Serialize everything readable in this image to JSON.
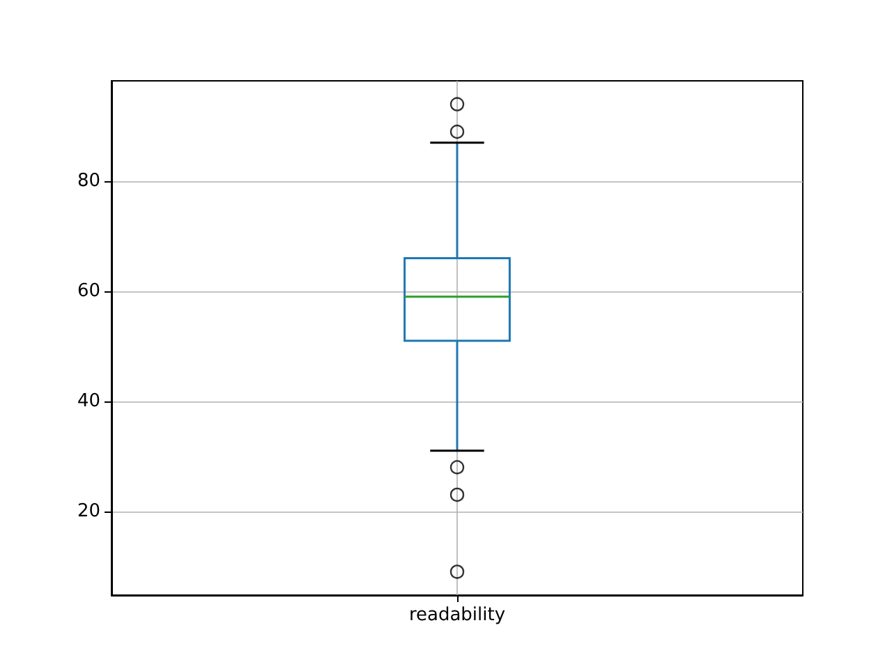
{
  "chart_data": {
    "type": "box",
    "categories": [
      "readability"
    ],
    "series": [
      {
        "color": "#1f77b4",
        "boxes": [
          {
            "low": 31,
            "q1": 51,
            "median": 59,
            "q3": 66,
            "high": 87,
            "outliers": [
              94,
              89,
              28,
              23,
              9
            ]
          }
        ]
      }
    ],
    "ylim": [
      4.75,
      98.25
    ],
    "yticks": [
      20,
      40,
      60,
      80
    ],
    "grid": true,
    "marker": "circle"
  }
}
